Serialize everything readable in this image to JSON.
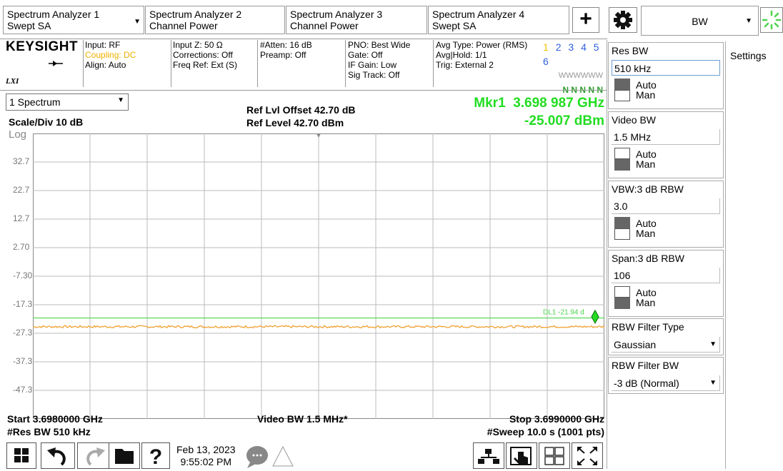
{
  "tabs": [
    {
      "title": "Spectrum Analyzer 1",
      "mode": "Swept SA"
    },
    {
      "title": "Spectrum Analyzer 2",
      "mode": "Channel Power"
    },
    {
      "title": "Spectrum Analyzer 3",
      "mode": "Channel Power"
    },
    {
      "title": "Spectrum Analyzer 4",
      "mode": "Swept SA"
    }
  ],
  "top_menu": {
    "selected": "BW"
  },
  "status": {
    "brand": "KEYSIGHT",
    "lxi": "LXI",
    "input": "Input: RF",
    "coupling": "Coupling: DC",
    "align": "Align: Auto",
    "input_z": "Input Z: 50 Ω",
    "corrections": "Corrections: Off",
    "freq_ref": "Freq Ref: Ext (S)",
    "atten": "#Atten: 16 dB",
    "preamp": "Preamp: Off",
    "pno": "PNO: Best Wide",
    "gate": "Gate: Off",
    "if_gain": "IF Gain: Low",
    "sig_track": "Sig Track: Off",
    "avg_type": "Avg Type: Power (RMS)",
    "avg_hold": "Avg|Hold: 1/1",
    "trig": "Trig: External 2",
    "trace_nums": [
      "1",
      "2",
      "3",
      "4",
      "5",
      "6"
    ],
    "trace_types": "WWWWWW",
    "trace_det": "N N N N N"
  },
  "graph": {
    "window": "1 Spectrum",
    "ref_offset": "Ref Lvl Offset 42.70 dB",
    "ref_level": "Ref Level 42.70 dBm",
    "marker_label": "Mkr1  3.698 987 GHz",
    "marker_value": "-25.007 dBm",
    "scale": "Scale/Div 10 dB",
    "log": "Log",
    "y_ticks": [
      "32.7",
      "22.7",
      "12.7",
      "2.70",
      "-7.30",
      "-17.3",
      "-27.3",
      "-37.3",
      "-47.3"
    ],
    "display_line": "DL1 -21.94 d",
    "start": "Start 3.6980000 GHz",
    "res_bw": "#Res BW 510 kHz",
    "video_bw": "Video BW 1.5 MHz*",
    "stop": "Stop 3.6990000 GHz",
    "sweep": "#Sweep 10.0 s (1001 pts)"
  },
  "panel": {
    "res_bw": {
      "title": "Res BW",
      "value": "510 kHz",
      "auto": "Auto",
      "man": "Man"
    },
    "video_bw": {
      "title": "Video BW",
      "value": "1.5 MHz",
      "auto": "Auto",
      "man": "Man"
    },
    "vbw_ratio": {
      "title": "VBW:3 dB RBW",
      "value": "3.0",
      "auto": "Auto",
      "man": "Man"
    },
    "span_ratio": {
      "title": "Span:3 dB RBW",
      "value": "106",
      "auto": "Auto",
      "man": "Man"
    },
    "filter_type": {
      "title": "RBW Filter Type",
      "value": "Gaussian"
    },
    "filter_bw": {
      "title": "RBW Filter BW",
      "value": "-3 dB (Normal)"
    }
  },
  "settings_label": "Settings",
  "datetime": {
    "date": "Feb 13, 2023",
    "time": "9:55:02 PM"
  },
  "colors": {
    "marker": "#22dd22",
    "trace": "#f0a030",
    "display_line": "#4cd44c",
    "coupling": "#f0b000",
    "trace1": "#f0c000",
    "trace_other": "#3060e0"
  }
}
